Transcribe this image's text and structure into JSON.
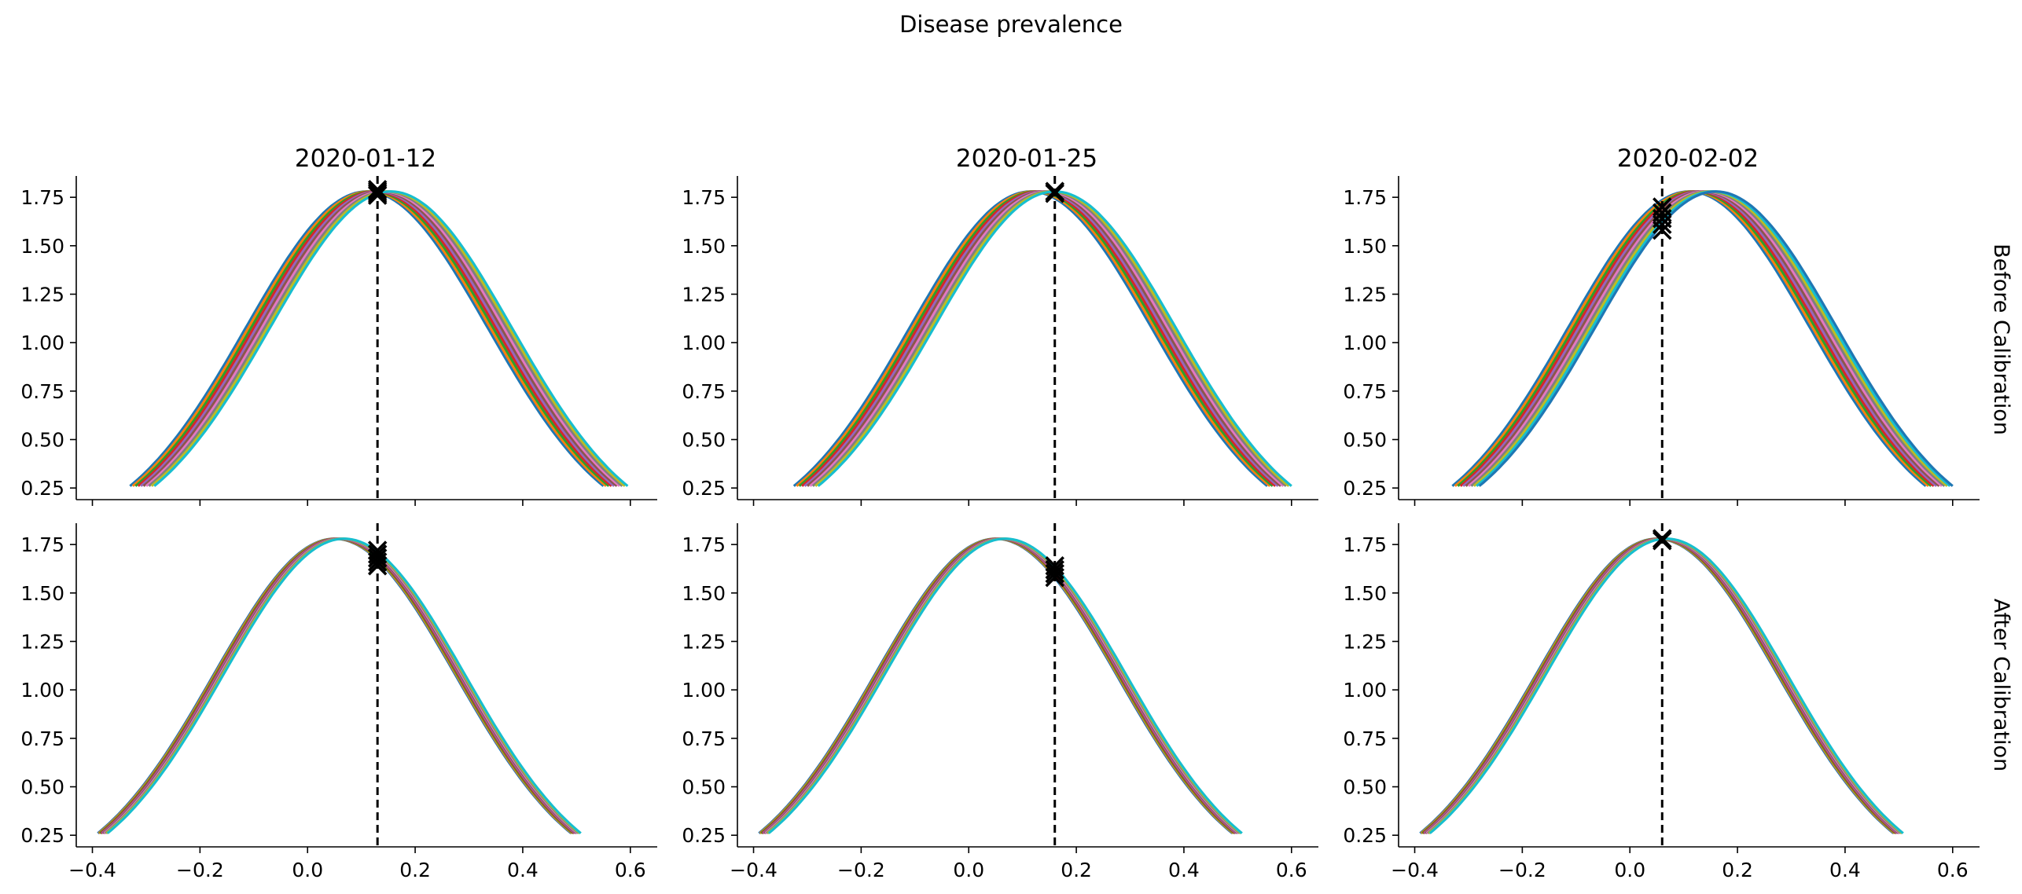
{
  "figure": {
    "title": "Disease prevalence",
    "row_labels": [
      "Before Calibration",
      "After Calibration"
    ],
    "column_titles": [
      "2020-01-12",
      "2020-01-25",
      "2020-02-02"
    ]
  },
  "colors": {
    "series": [
      "#1f77b4",
      "#ff7f0e",
      "#2ca02c",
      "#d62728",
      "#9467bd",
      "#8c564b",
      "#e377c2",
      "#7f7f7f",
      "#bcbd22",
      "#17becf"
    ],
    "reference_line": "#000000",
    "marker": "#000000"
  },
  "chart_data": {
    "type": "line",
    "layout": "grid 2 rows x 3 columns, shared x-axis per column, shared y-axis",
    "xlim": [
      -0.43,
      0.65
    ],
    "ylim": [
      0.19,
      1.86
    ],
    "xticks": [
      "−0.4",
      "−0.2",
      "0.0",
      "0.2",
      "0.4",
      "0.6"
    ],
    "yticks": [
      "0.25",
      "0.50",
      "0.75",
      "1.00",
      "1.25",
      "1.50",
      "1.75"
    ],
    "xtick_values": [
      -0.4,
      -0.2,
      0.0,
      0.2,
      0.4,
      0.6
    ],
    "ytick_values": [
      0.25,
      0.5,
      0.75,
      1.0,
      1.25,
      1.5,
      1.75
    ],
    "grid": false,
    "curve_shape": "gaussian bell, peak 1.78 at mu, value 0.26 at mu +/- 0.44",
    "curve_peak": 1.78,
    "curve_halfwidth": 0.44,
    "panels": [
      {
        "row": 0,
        "col": 0,
        "title": "2020-01-12",
        "observed_x": 0.13,
        "curve_centers": [
          0.11,
          0.115,
          0.12,
          0.125,
          0.13,
          0.135,
          0.14,
          0.145,
          0.15,
          0.155
        ],
        "marker_y": [
          1.79,
          1.78,
          1.77,
          1.76
        ]
      },
      {
        "row": 0,
        "col": 1,
        "title": "2020-01-25",
        "observed_x": 0.16,
        "curve_centers": [
          0.115,
          0.12,
          0.125,
          0.13,
          0.135,
          0.14,
          0.145,
          0.15,
          0.155,
          0.16
        ],
        "marker_y": [
          1.78,
          1.78,
          1.77
        ]
      },
      {
        "row": 0,
        "col": 2,
        "title": "2020-02-02",
        "observed_x": 0.06,
        "curve_centers": [
          0.11,
          0.115,
          0.12,
          0.125,
          0.13,
          0.135,
          0.14,
          0.145,
          0.15,
          0.155,
          0.16
        ],
        "marker_y": [
          1.7,
          1.67,
          1.64,
          1.61,
          1.58
        ]
      },
      {
        "row": 1,
        "col": 0,
        "title": "",
        "observed_x": 0.13,
        "curve_centers": [
          0.05,
          0.052,
          0.054,
          0.056,
          0.058,
          0.06,
          0.062,
          0.064,
          0.066,
          0.068
        ],
        "marker_y": [
          1.72,
          1.7,
          1.68,
          1.66,
          1.64
        ]
      },
      {
        "row": 1,
        "col": 1,
        "title": "",
        "observed_x": 0.16,
        "curve_centers": [
          0.05,
          0.052,
          0.054,
          0.056,
          0.058,
          0.06,
          0.062,
          0.064,
          0.066,
          0.068
        ],
        "marker_y": [
          1.64,
          1.62,
          1.6,
          1.58
        ]
      },
      {
        "row": 1,
        "col": 2,
        "title": "",
        "observed_x": 0.06,
        "curve_centers": [
          0.05,
          0.052,
          0.054,
          0.056,
          0.058,
          0.06,
          0.062,
          0.064,
          0.066,
          0.068
        ],
        "marker_y": [
          1.78,
          1.78,
          1.77
        ]
      }
    ]
  }
}
